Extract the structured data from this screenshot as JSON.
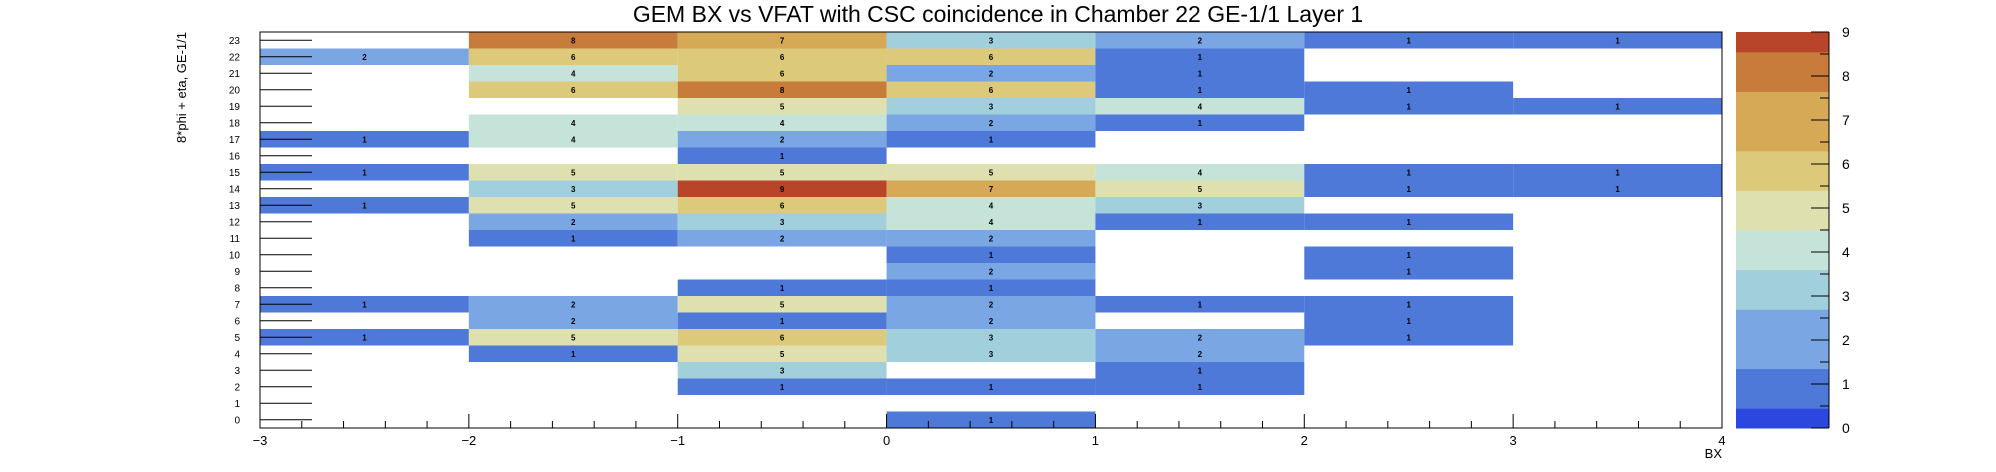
{
  "chart_data": {
    "type": "heatmap",
    "title": "GEM BX vs VFAT with CSC coincidence in Chamber 22 GE-1/1 Layer 1",
    "xlabel": "BX",
    "ylabel": "8*phi + eta, GE-1/1",
    "xlim": [
      -3,
      4
    ],
    "ylim": [
      -0.5,
      23.5
    ],
    "zlim": [
      0,
      9
    ],
    "x_ticks": [
      "−3",
      "−2",
      "−1",
      "0",
      "1",
      "2",
      "3",
      "4"
    ],
    "z_ticks": [
      "0",
      "1",
      "2",
      "3",
      "4",
      "5",
      "6",
      "7",
      "8",
      "9"
    ],
    "y_categories": [
      "0",
      "1",
      "2",
      "3",
      "4",
      "5",
      "6",
      "7",
      "8",
      "9",
      "10",
      "11",
      "12",
      "13",
      "14",
      "15",
      "16",
      "17",
      "18",
      "19",
      "20",
      "21",
      "22",
      "23"
    ],
    "x_bins": [
      [
        -3,
        -2
      ],
      [
        -2,
        -1
      ],
      [
        -1,
        0
      ],
      [
        0,
        1
      ],
      [
        1,
        2
      ],
      [
        2,
        3
      ],
      [
        3,
        4
      ]
    ],
    "cells": [
      [
        0,
        3,
        1
      ],
      [
        2,
        2,
        1
      ],
      [
        2,
        3,
        1
      ],
      [
        2,
        4,
        1
      ],
      [
        3,
        2,
        3
      ],
      [
        3,
        4,
        1
      ],
      [
        4,
        1,
        1
      ],
      [
        4,
        2,
        5
      ],
      [
        4,
        3,
        3
      ],
      [
        4,
        4,
        2
      ],
      [
        5,
        0,
        1
      ],
      [
        5,
        1,
        5
      ],
      [
        5,
        2,
        6
      ],
      [
        5,
        3,
        3
      ],
      [
        5,
        4,
        2
      ],
      [
        5,
        5,
        1
      ],
      [
        6,
        1,
        2
      ],
      [
        6,
        2,
        1
      ],
      [
        6,
        3,
        2
      ],
      [
        6,
        5,
        1
      ],
      [
        7,
        0,
        1
      ],
      [
        7,
        1,
        2
      ],
      [
        7,
        2,
        5
      ],
      [
        7,
        3,
        2
      ],
      [
        7,
        4,
        1
      ],
      [
        7,
        5,
        1
      ],
      [
        8,
        2,
        1
      ],
      [
        8,
        3,
        1
      ],
      [
        9,
        3,
        2
      ],
      [
        9,
        5,
        1
      ],
      [
        10,
        3,
        1
      ],
      [
        10,
        5,
        1
      ],
      [
        11,
        1,
        1
      ],
      [
        11,
        2,
        2
      ],
      [
        11,
        3,
        2
      ],
      [
        12,
        1,
        2
      ],
      [
        12,
        2,
        3
      ],
      [
        12,
        3,
        4
      ],
      [
        12,
        4,
        1
      ],
      [
        12,
        5,
        1
      ],
      [
        13,
        0,
        1
      ],
      [
        13,
        1,
        5
      ],
      [
        13,
        2,
        6
      ],
      [
        13,
        3,
        4
      ],
      [
        13,
        4,
        3
      ],
      [
        14,
        1,
        3
      ],
      [
        14,
        2,
        9
      ],
      [
        14,
        3,
        7
      ],
      [
        14,
        4,
        5
      ],
      [
        14,
        5,
        1
      ],
      [
        14,
        6,
        1
      ],
      [
        15,
        0,
        1
      ],
      [
        15,
        1,
        5
      ],
      [
        15,
        2,
        5
      ],
      [
        15,
        3,
        5
      ],
      [
        15,
        4,
        4
      ],
      [
        15,
        5,
        1
      ],
      [
        15,
        6,
        1
      ],
      [
        16,
        2,
        1
      ],
      [
        17,
        0,
        1
      ],
      [
        17,
        1,
        4
      ],
      [
        17,
        2,
        2
      ],
      [
        17,
        3,
        1
      ],
      [
        18,
        1,
        4
      ],
      [
        18,
        2,
        4
      ],
      [
        18,
        3,
        2
      ],
      [
        18,
        4,
        1
      ],
      [
        19,
        2,
        5
      ],
      [
        19,
        3,
        3
      ],
      [
        19,
        4,
        4
      ],
      [
        19,
        5,
        1
      ],
      [
        19,
        6,
        1
      ],
      [
        20,
        1,
        6
      ],
      [
        20,
        2,
        8
      ],
      [
        20,
        3,
        6
      ],
      [
        20,
        4,
        1
      ],
      [
        20,
        5,
        1
      ],
      [
        21,
        1,
        4
      ],
      [
        21,
        2,
        6
      ],
      [
        21,
        3,
        2
      ],
      [
        21,
        4,
        1
      ],
      [
        22,
        0,
        2
      ],
      [
        22,
        1,
        6
      ],
      [
        22,
        2,
        6
      ],
      [
        22,
        3,
        6
      ],
      [
        22,
        4,
        1
      ],
      [
        23,
        1,
        8
      ],
      [
        23,
        2,
        7
      ],
      [
        23,
        3,
        3
      ],
      [
        23,
        4,
        2
      ],
      [
        23,
        5,
        1
      ],
      [
        23,
        6,
        1
      ]
    ],
    "cells_format": "[y_category_index, x_bin_index, count]",
    "palette": [
      "#2c47e0",
      "#4f79d8",
      "#7aa7e4",
      "#a1d0dc",
      "#c5e3d8",
      "#dfe0b0",
      "#dcc97a",
      "#d6a956",
      "#c87c3c",
      "#b8452a"
    ],
    "grid": false,
    "legend": "color scale right"
  }
}
